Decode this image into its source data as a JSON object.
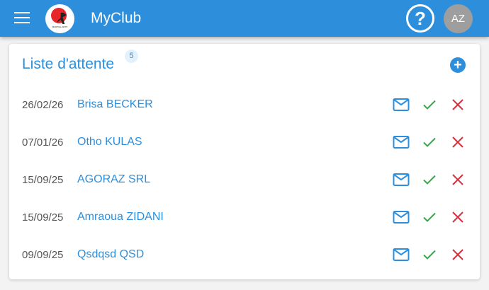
{
  "header": {
    "title": "MyClub",
    "logo_text": "MARTIAL ARTS",
    "avatar_initials": "AZ",
    "help_glyph": "?"
  },
  "waitlist": {
    "title": "Liste d'attente",
    "count": "5",
    "add_glyph": "+",
    "rows": [
      {
        "date": "26/02/26",
        "name": "Brisa BECKER"
      },
      {
        "date": "07/01/26",
        "name": "Otho KULAS"
      },
      {
        "date": "15/09/25",
        "name": "AGORAZ SRL"
      },
      {
        "date": "15/09/25",
        "name": "Amraoua ZIDANI"
      },
      {
        "date": "09/09/25",
        "name": "Qsdqsd QSD"
      }
    ]
  },
  "colors": {
    "primary": "#2d8fdc",
    "accept": "#3aa64a",
    "reject": "#d9303e",
    "avatar": "#9e9e9e"
  }
}
